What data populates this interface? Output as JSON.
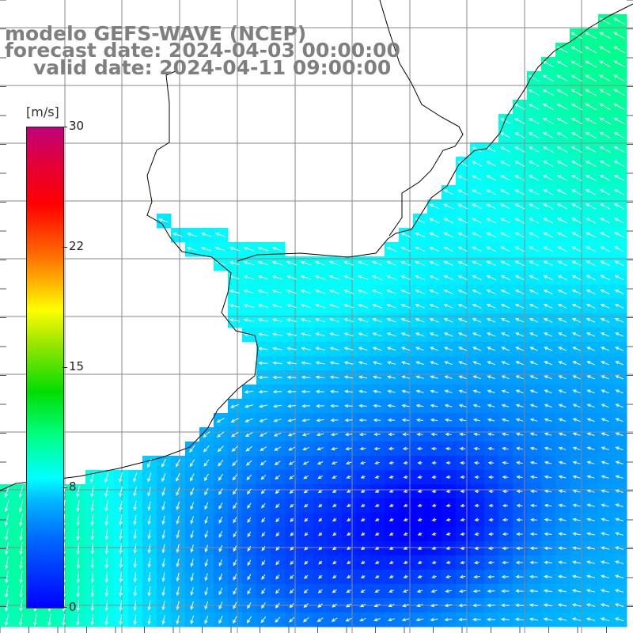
{
  "title": {
    "model": "modelo GEFS-WAVE (NCEP)",
    "forecast_date": "forecast date: 2024-04-03 00:00:00",
    "valid_date": "valid date: 2024-04-11 09:00:00"
  },
  "colorbar": {
    "unit": "[m/s]",
    "ticks": [
      "30",
      "22",
      "15",
      "8",
      "0"
    ]
  },
  "colors": {
    "land": "#ffffff",
    "coast": "#000000",
    "grid": "#8a8a8a",
    "arrows": "#ffffff",
    "title": "#7f7f7f"
  },
  "map_data": {
    "variable": "wind speed and direction",
    "colormap": "jet-like (blue low to magenta high)",
    "speed_range": [
      0,
      30
    ],
    "typical_speed_range": [
      2,
      12
    ],
    "wind_pattern": "south-easterly/easterly flow over the open ocean, turning to northerly-southerly flow near the southwest; calm area near center-bottom"
  }
}
